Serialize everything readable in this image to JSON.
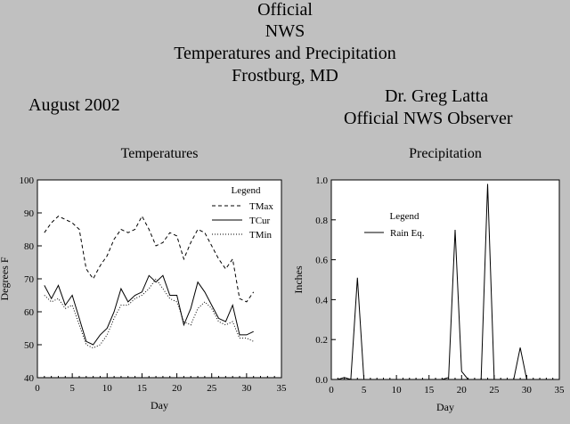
{
  "header": {
    "line1": "Official",
    "line2": "NWS",
    "line3": "Temperatures and Precipitation",
    "line4": "Frostburg, MD",
    "month": "August 2002",
    "observer_name": "Dr. Greg Latta",
    "observer_role": "Official NWS Observer"
  },
  "chart_data": [
    {
      "type": "line",
      "title": "Temperatures",
      "xlabel": "Day",
      "ylabel": "Degrees F",
      "xlim": [
        0,
        35
      ],
      "ylim": [
        40,
        100
      ],
      "xticks": [
        0,
        5,
        10,
        15,
        20,
        25,
        30,
        35
      ],
      "yticks": [
        40,
        50,
        60,
        70,
        80,
        90,
        100
      ],
      "legend_title": "Legend",
      "legend_position": "top-right",
      "series": [
        {
          "name": "TMax",
          "style": "dashed",
          "x": [
            1,
            2,
            3,
            4,
            5,
            6,
            7,
            8,
            9,
            10,
            11,
            12,
            13,
            14,
            15,
            16,
            17,
            18,
            19,
            20,
            21,
            22,
            23,
            24,
            25,
            26,
            27,
            28,
            29,
            30,
            31
          ],
          "y": [
            84,
            87,
            89,
            88,
            87,
            85,
            73,
            70,
            74,
            77,
            82,
            85,
            84,
            85,
            89,
            85,
            80,
            81,
            84,
            83,
            76,
            81,
            85,
            84,
            80,
            76,
            73,
            76,
            64,
            63,
            66
          ]
        },
        {
          "name": "TCur",
          "style": "solid",
          "x": [
            1,
            2,
            3,
            4,
            5,
            6,
            7,
            8,
            9,
            10,
            11,
            12,
            13,
            14,
            15,
            16,
            17,
            18,
            19,
            20,
            21,
            22,
            23,
            24,
            25,
            26,
            27,
            28,
            29,
            30,
            31
          ],
          "y": [
            68,
            64,
            68,
            62,
            65,
            58,
            51,
            50,
            53,
            55,
            60,
            67,
            63,
            65,
            66,
            71,
            69,
            71,
            65,
            65,
            56,
            61,
            69,
            66,
            62,
            58,
            57,
            62,
            53,
            53,
            54
          ]
        },
        {
          "name": "TMin",
          "style": "dotted",
          "x": [
            1,
            2,
            3,
            4,
            5,
            6,
            7,
            8,
            9,
            10,
            11,
            12,
            13,
            14,
            15,
            16,
            17,
            18,
            19,
            20,
            21,
            22,
            23,
            24,
            25,
            26,
            27,
            28,
            29,
            30,
            31
          ],
          "y": [
            65,
            63,
            64,
            61,
            62,
            56,
            50,
            49,
            50,
            53,
            58,
            62,
            62,
            64,
            65,
            67,
            70,
            67,
            64,
            63,
            57,
            56,
            61,
            63,
            61,
            57,
            56,
            57,
            52,
            52,
            51
          ]
        }
      ]
    },
    {
      "type": "line",
      "title": "Precipitation",
      "xlabel": "Day",
      "ylabel": "Inches",
      "xlim": [
        0,
        35
      ],
      "ylim": [
        0,
        1.0
      ],
      "xticks": [
        0,
        5,
        10,
        15,
        20,
        25,
        30,
        35
      ],
      "yticks": [
        0.0,
        0.2,
        0.4,
        0.6,
        0.8,
        1.0
      ],
      "ytick_labels": [
        "0.0",
        "0.2",
        "0.4",
        "0.6",
        "0.8",
        "1.0"
      ],
      "legend_title": "Legend",
      "legend_position": "top-left",
      "series": [
        {
          "name": "Rain Eq.",
          "style": "solid",
          "x": [
            1,
            2,
            3,
            4,
            5,
            6,
            7,
            8,
            9,
            10,
            11,
            12,
            13,
            14,
            15,
            16,
            17,
            18,
            19,
            20,
            21,
            22,
            23,
            24,
            25,
            26,
            27,
            28,
            29,
            30,
            31
          ],
          "y": [
            0,
            0.01,
            0,
            0.51,
            0,
            0,
            0,
            0,
            0,
            0,
            0,
            0,
            0,
            0,
            0,
            0,
            0,
            0.01,
            0.75,
            0.04,
            0,
            0,
            0,
            0.98,
            0,
            0,
            0,
            0,
            0.16,
            0,
            0
          ]
        }
      ]
    }
  ]
}
